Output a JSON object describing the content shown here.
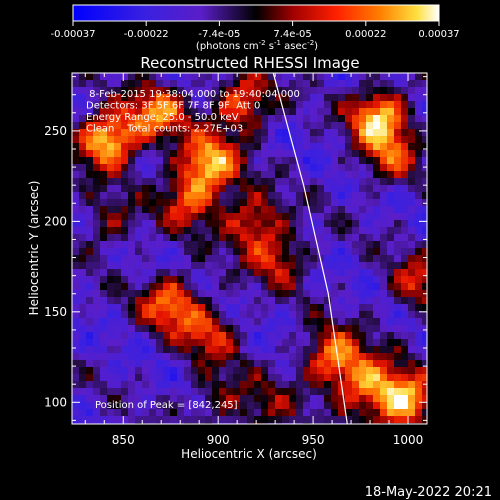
{
  "chart_data": {
    "type": "heatmap",
    "title": "Reconstructed RHESSI Image",
    "xlabel": "Heliocentric X (arcsec)",
    "ylabel": "Heliocentric Y (arcsec)",
    "xlim": [
      823,
      1010
    ],
    "ylim": [
      88,
      282
    ],
    "x_ticks": [
      850,
      900,
      950,
      1000
    ],
    "y_ticks": [
      100,
      150,
      200,
      250
    ],
    "colorbar": {
      "ticks": [
        "-0.00037",
        "-0.00022",
        "-7.4e-05",
        "7.4e-05",
        "0.00022",
        "0.00037"
      ],
      "units_text": "(photons cm",
      "units_sup1": "-2",
      "units_mid1": " s",
      "units_sup2": "-1",
      "units_mid2": " asec",
      "units_sup3": "-2",
      "units_end": ")",
      "range": [
        -0.00037,
        0.00037
      ]
    },
    "info_lines": [
      " 8-Feb-2015 19:38:04.000 to 19:40:04.000",
      "Detectors: 3F 5F 6F 7F 8F 9F  Att 0",
      "Energy Range: 25.0 - 50.0 keV",
      "Clean    Total counts: 2.27E+03"
    ],
    "peak_label": "Position of Peak = [842,245]",
    "limb": [
      [
        929,
        282
      ],
      [
        945,
        220
      ],
      [
        958,
        160
      ],
      [
        968,
        88
      ]
    ],
    "hot_sources": [
      {
        "x": 842,
        "y": 245,
        "level": 1.0
      },
      {
        "x": 868,
        "y": 260,
        "level": 0.7
      },
      {
        "x": 895,
        "y": 232,
        "level": 0.85
      },
      {
        "x": 885,
        "y": 212,
        "level": 0.6
      },
      {
        "x": 913,
        "y": 265,
        "level": 0.7
      },
      {
        "x": 918,
        "y": 200,
        "level": 0.6
      },
      {
        "x": 985,
        "y": 258,
        "level": 0.9
      },
      {
        "x": 990,
        "y": 235,
        "level": 0.5
      },
      {
        "x": 875,
        "y": 155,
        "level": 0.7
      },
      {
        "x": 895,
        "y": 138,
        "level": 0.5
      },
      {
        "x": 932,
        "y": 180,
        "level": 0.5
      },
      {
        "x": 960,
        "y": 125,
        "level": 0.75
      },
      {
        "x": 998,
        "y": 100,
        "level": 0.95
      },
      {
        "x": 978,
        "y": 110,
        "level": 0.7
      },
      {
        "x": 842,
        "y": 198,
        "level": 0.35
      },
      {
        "x": 900,
        "y": 103,
        "level": 0.35
      },
      {
        "x": 925,
        "y": 95,
        "level": 0.35
      },
      {
        "x": 1005,
        "y": 165,
        "level": 0.5
      }
    ]
  },
  "footer": {
    "timestamp": "18-May-2022 20:21"
  }
}
